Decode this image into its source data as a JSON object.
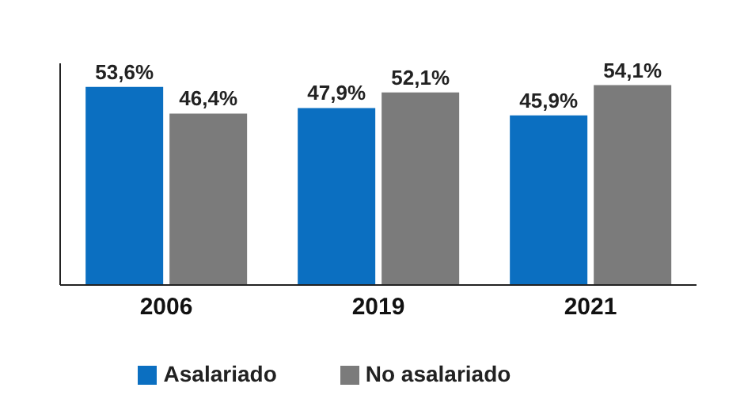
{
  "chart_data": {
    "type": "bar",
    "categories": [
      "2006",
      "2019",
      "2021"
    ],
    "series": [
      {
        "name": "Asalariado",
        "color": "#0b6fc1",
        "values": [
          53.6,
          47.9,
          45.9
        ],
        "value_labels": [
          "53,6%",
          "47,9%",
          "45,9%"
        ]
      },
      {
        "name": "No asalariado",
        "color": "#7b7b7b",
        "values": [
          46.4,
          52.1,
          54.1
        ],
        "value_labels": [
          "46,4%",
          "52,1%",
          "54,1%"
        ]
      }
    ],
    "tick_labels": "x",
    "legend": "bottom",
    "grid": false
  }
}
